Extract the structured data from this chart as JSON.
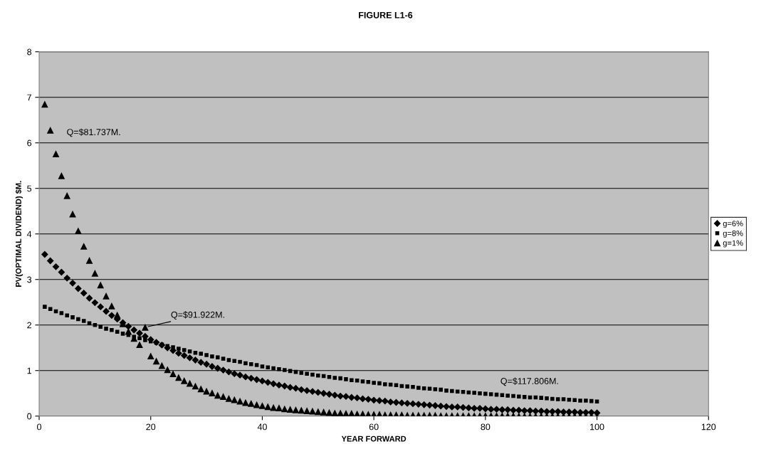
{
  "chart_data": {
    "type": "scatter",
    "title": "FIGURE L1-6",
    "xlabel": "YEAR FORWARD",
    "ylabel": "PV(OPTIMAL DIVIDEND) $M.",
    "x": [
      1,
      2,
      3,
      4,
      5,
      6,
      7,
      8,
      9,
      10,
      11,
      12,
      13,
      14,
      15,
      16,
      17,
      18,
      19,
      20,
      21,
      22,
      23,
      24,
      25,
      26,
      27,
      28,
      29,
      30,
      31,
      32,
      33,
      34,
      35,
      36,
      37,
      38,
      39,
      40,
      41,
      42,
      43,
      44,
      45,
      46,
      47,
      48,
      49,
      50,
      51,
      52,
      53,
      54,
      55,
      56,
      57,
      58,
      59,
      60,
      61,
      62,
      63,
      64,
      65,
      66,
      67,
      68,
      69,
      70,
      71,
      72,
      73,
      74,
      75,
      76,
      77,
      78,
      79,
      80,
      81,
      82,
      83,
      84,
      85,
      86,
      87,
      88,
      89,
      90,
      91,
      92,
      93,
      94,
      95,
      96,
      97,
      98,
      99,
      100
    ],
    "series": [
      {
        "name": "g=6%",
        "color": "#000000",
        "marker": "diamond",
        "values": [
          3.55,
          3.41,
          3.28,
          3.16,
          3.03,
          2.92,
          2.8,
          2.7,
          2.59,
          2.49,
          2.4,
          2.3,
          2.21,
          2.13,
          2.05,
          1.97,
          1.89,
          1.82,
          1.75,
          1.68,
          1.62,
          1.56,
          1.5,
          1.44,
          1.38,
          1.33,
          1.28,
          1.23,
          1.18,
          1.14,
          1.09,
          1.05,
          1.01,
          0.97,
          0.93,
          0.9,
          0.86,
          0.83,
          0.8,
          0.77,
          0.74,
          0.71,
          0.68,
          0.66,
          0.63,
          0.61,
          0.58,
          0.56,
          0.54,
          0.52,
          0.5,
          0.48,
          0.46,
          0.44,
          0.43,
          0.41,
          0.4,
          0.38,
          0.37,
          0.35,
          0.34,
          0.33,
          0.31,
          0.3,
          0.29,
          0.28,
          0.27,
          0.26,
          0.25,
          0.24,
          0.23,
          0.22,
          0.21,
          0.2,
          0.2,
          0.19,
          0.18,
          0.17,
          0.17,
          0.16,
          0.15,
          0.15,
          0.14,
          0.14,
          0.13,
          0.13,
          0.12,
          0.12,
          0.11,
          0.11,
          0.1,
          0.1,
          0.1,
          0.09,
          0.09,
          0.09,
          0.08,
          0.08,
          0.08,
          0.07
        ]
      },
      {
        "name": "g=8%",
        "color": "#000000",
        "marker": "square",
        "values": [
          2.4,
          2.35,
          2.3,
          2.26,
          2.21,
          2.17,
          2.13,
          2.09,
          2.04,
          2.0,
          1.96,
          1.92,
          1.89,
          1.85,
          1.81,
          1.78,
          1.74,
          1.71,
          1.67,
          1.64,
          1.61,
          1.57,
          1.54,
          1.51,
          1.48,
          1.45,
          1.42,
          1.39,
          1.37,
          1.34,
          1.31,
          1.29,
          1.26,
          1.23,
          1.21,
          1.19,
          1.16,
          1.14,
          1.12,
          1.09,
          1.07,
          1.05,
          1.03,
          1.01,
          0.99,
          0.97,
          0.95,
          0.93,
          0.91,
          0.89,
          0.88,
          0.86,
          0.84,
          0.83,
          0.81,
          0.79,
          0.78,
          0.76,
          0.75,
          0.73,
          0.72,
          0.7,
          0.69,
          0.68,
          0.66,
          0.65,
          0.64,
          0.62,
          0.61,
          0.6,
          0.59,
          0.58,
          0.56,
          0.55,
          0.54,
          0.53,
          0.52,
          0.51,
          0.5,
          0.49,
          0.48,
          0.47,
          0.46,
          0.45,
          0.44,
          0.43,
          0.42,
          0.41,
          0.41,
          0.4,
          0.39,
          0.38,
          0.37,
          0.37,
          0.36,
          0.35,
          0.34,
          0.34,
          0.33,
          0.32
        ]
      },
      {
        "name": "g=1%",
        "color": "#000000",
        "marker": "triangle",
        "values": [
          6.85,
          6.28,
          5.76,
          5.28,
          4.84,
          4.44,
          4.07,
          3.73,
          3.42,
          3.14,
          2.88,
          2.64,
          2.42,
          2.22,
          2.03,
          1.86,
          1.71,
          1.57,
          1.95,
          1.32,
          1.21,
          1.11,
          1.02,
          0.93,
          0.85,
          0.78,
          0.72,
          0.66,
          0.6,
          0.55,
          0.51,
          0.46,
          0.43,
          0.39,
          0.36,
          0.33,
          0.3,
          0.28,
          0.25,
          0.23,
          0.21,
          0.19,
          0.18,
          0.16,
          0.15,
          0.14,
          0.13,
          0.12,
          0.11,
          0.1,
          0.09,
          0.08,
          0.07,
          0.07,
          0.06,
          0.06,
          0.05,
          0.05,
          0.04,
          0.04,
          0.04,
          0.03,
          0.03,
          0.03,
          0.03,
          0.02,
          0.02,
          0.02,
          0.02,
          0.02,
          0.02,
          0.01,
          0.01,
          0.01,
          0.01,
          0.01,
          0.01,
          0.01,
          0.01,
          0.01,
          0.01,
          0.01,
          0.01,
          0.01,
          0.01,
          0,
          0,
          0,
          0,
          0,
          0,
          0,
          0,
          0,
          0,
          0,
          0,
          0,
          0,
          0
        ]
      }
    ],
    "annotations": [
      "Q=$81.737M.",
      {
        "text": "Q=$91.922M.",
        "x": 19,
        "y": 1.95
      },
      "Q=$117.806M."
    ],
    "xlim": [
      0,
      120
    ],
    "xticks": [
      0,
      20,
      40,
      60,
      80,
      100,
      120
    ],
    "ylim": [
      0,
      8
    ],
    "yticks": [
      0,
      1,
      2,
      3,
      4,
      5,
      6,
      7,
      8
    ],
    "grid": "y",
    "legend": "right"
  }
}
